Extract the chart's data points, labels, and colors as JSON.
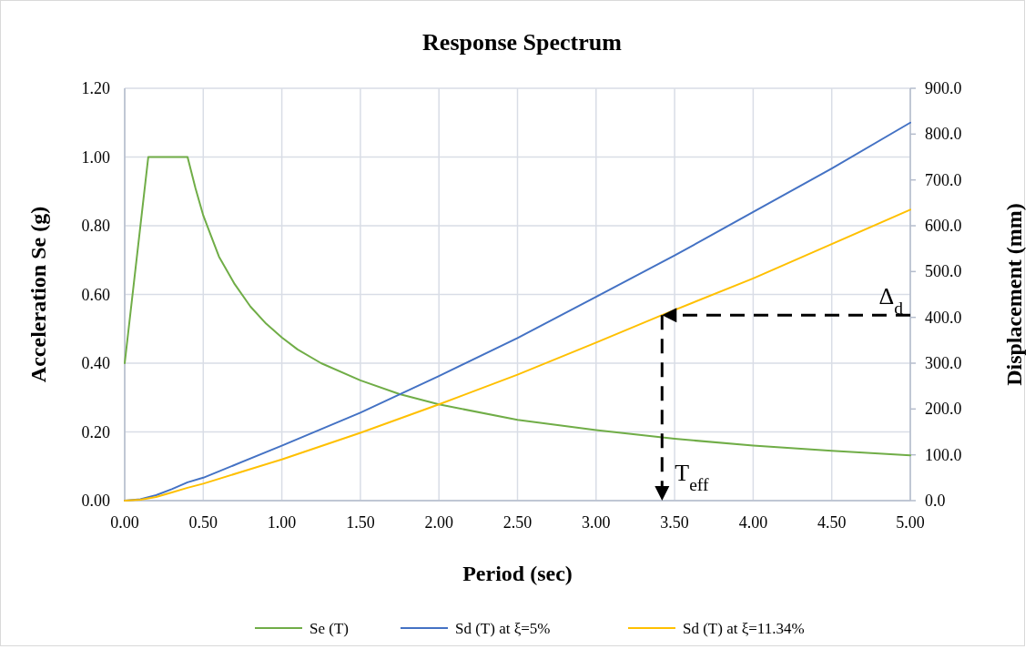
{
  "chart_data": {
    "type": "line",
    "title": "Response Spectrum",
    "xlabel": "Period (sec)",
    "ylabel": "Acceleration Se  (g)",
    "y2label": "Displacement (mm)",
    "xlim": [
      0,
      5
    ],
    "xticks": [
      {
        "value": 0,
        "label": "0.00"
      },
      {
        "value": 0.5,
        "label": "0.50"
      },
      {
        "value": 1,
        "label": "1.00"
      },
      {
        "value": 1.5,
        "label": "1.50"
      },
      {
        "value": 2,
        "label": "2.00"
      },
      {
        "value": 2.5,
        "label": "2.50"
      },
      {
        "value": 3,
        "label": "3.00"
      },
      {
        "value": 3.5,
        "label": "3.50"
      },
      {
        "value": 4,
        "label": "4.00"
      },
      {
        "value": 4.5,
        "label": "4.50"
      },
      {
        "value": 5,
        "label": "5.00"
      }
    ],
    "ylim": [
      0,
      1.2
    ],
    "yticks": [
      {
        "value": 0,
        "label": "0.00"
      },
      {
        "value": 0.2,
        "label": "0.20"
      },
      {
        "value": 0.4,
        "label": "0.40"
      },
      {
        "value": 0.6,
        "label": "0.60"
      },
      {
        "value": 0.8,
        "label": "0.80"
      },
      {
        "value": 1,
        "label": "1.00"
      },
      {
        "value": 1.2,
        "label": "1.20"
      }
    ],
    "y2lim": [
      0,
      900
    ],
    "y2ticks": [
      {
        "value": 0,
        "label": "0.0"
      },
      {
        "value": 100,
        "label": "100.0"
      },
      {
        "value": 200,
        "label": "200.0"
      },
      {
        "value": 300,
        "label": "300.0"
      },
      {
        "value": 400,
        "label": "400.0"
      },
      {
        "value": 500,
        "label": "500.0"
      },
      {
        "value": 600,
        "label": "600.0"
      },
      {
        "value": 700,
        "label": "700.0"
      },
      {
        "value": 800,
        "label": "800.0"
      },
      {
        "value": 900,
        "label": "900.0"
      }
    ],
    "grid": true,
    "legend": "bottom",
    "marker": "none",
    "line_style": "solid",
    "series": [
      {
        "name": "Se (T)",
        "color": "#70ad47",
        "x": [
          0,
          0.15,
          0.4,
          0.45,
          0.5,
          0.55,
          0.6,
          0.7,
          0.8,
          0.9,
          1,
          1.1,
          1.25,
          1.5,
          1.75,
          2,
          2.5,
          3,
          3.5,
          4,
          4.5,
          5
        ],
        "values": [
          0.4,
          1.0,
          1.0,
          0.91,
          0.83,
          0.77,
          0.71,
          0.63,
          0.565,
          0.515,
          0.475,
          0.44,
          0.4,
          0.35,
          0.31,
          0.28,
          0.235,
          0.205,
          0.18,
          0.16,
          0.145,
          0.132
        ]
      },
      {
        "name": "Sd (T) at ξ=5%",
        "color": "#4472c4",
        "axis": "y2",
        "x": [
          0,
          0.1,
          0.2,
          0.3,
          0.4,
          0.5,
          1,
          1.5,
          2,
          2.5,
          3,
          3.5,
          4,
          4.5,
          5
        ],
        "values": [
          0,
          3,
          12,
          25,
          40,
          50,
          120,
          192,
          272,
          355,
          445,
          535,
          630,
          725,
          825
        ]
      },
      {
        "name": "Sd (T) at ξ=11.34%",
        "color": "#ffc000",
        "axis": "y2",
        "x": [
          0,
          0.1,
          0.2,
          0.3,
          0.4,
          0.5,
          1,
          1.5,
          2,
          2.5,
          3,
          3.42,
          4,
          4.5,
          5
        ],
        "values": [
          0,
          2,
          8,
          18,
          28,
          37,
          90,
          148,
          210,
          275,
          345,
          405,
          485,
          560,
          635
        ]
      }
    ],
    "ref_lines": [
      {
        "axis": "y2",
        "value": 405,
        "label": "Δ$_{d}$",
        "line_style": "dashed",
        "color": "#000000"
      },
      {
        "axis": "x",
        "value": 3.42,
        "label": "T$_{eff}$",
        "line_style": "dashed",
        "color": "#000000"
      }
    ]
  }
}
